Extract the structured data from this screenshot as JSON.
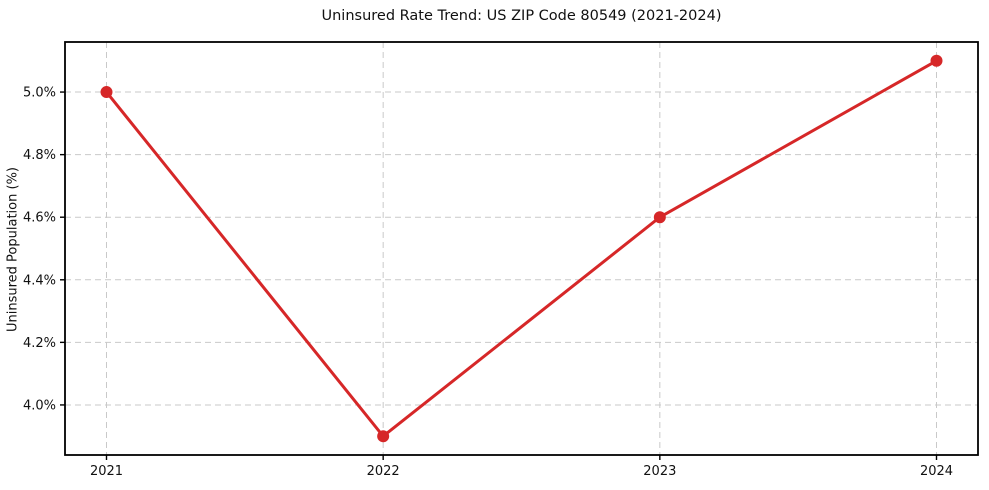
{
  "chart_data": {
    "type": "line",
    "title": "Uninsured Rate Trend: US ZIP Code 80549 (2021-2024)",
    "xlabel": "",
    "ylabel": "Uninsured Population (%)",
    "x": [
      2021,
      2022,
      2023,
      2024
    ],
    "series": [
      {
        "name": "Uninsured rate",
        "values": [
          5.0,
          3.9,
          4.6,
          5.1
        ],
        "color": "#d62728",
        "marker": "circle"
      }
    ],
    "xtick_labels": [
      "2021",
      "2022",
      "2023",
      "2024"
    ],
    "ytick_values": [
      4.0,
      4.2,
      4.4,
      4.6,
      4.8,
      5.0
    ],
    "ytick_labels": [
      "4.0%",
      "4.2%",
      "4.4%",
      "4.6%",
      "4.8%",
      "5.0%"
    ],
    "xlim": [
      2020.85,
      2024.15
    ],
    "ylim": [
      3.84,
      5.16
    ],
    "grid": "dashed",
    "grid_color": "#c9c9c9",
    "spine_color": "#000000",
    "background": "#ffffff",
    "legend_position": "none"
  }
}
